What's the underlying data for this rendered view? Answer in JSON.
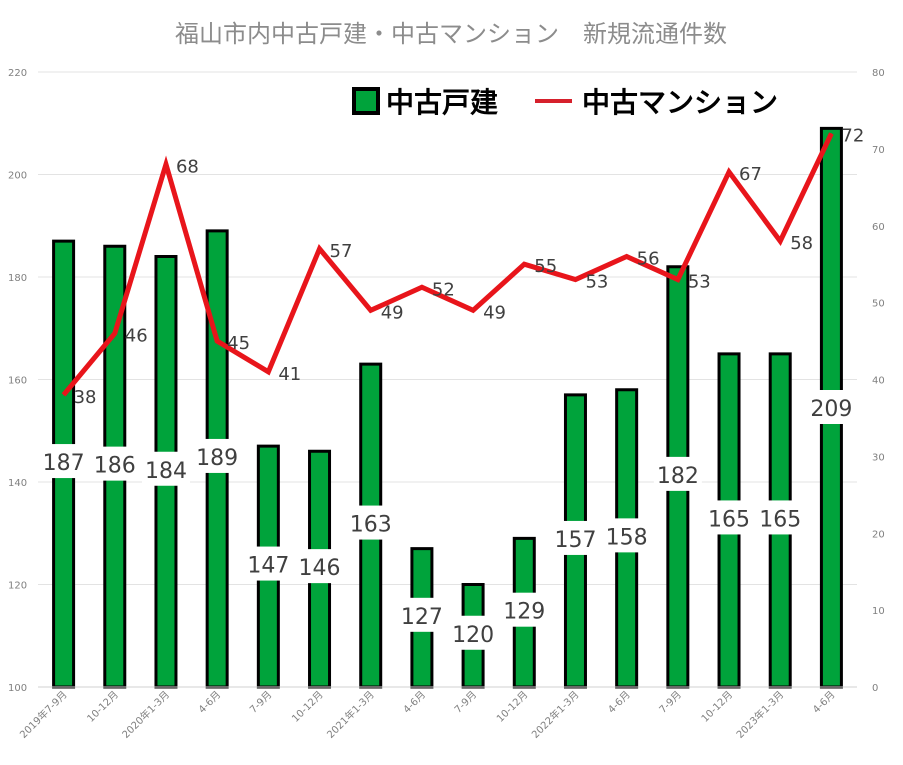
{
  "chart_data": {
    "type": "bar",
    "title": "福山市内中古戸建・中古マンション　新規流通件数",
    "categories": [
      "2019年7-9月",
      "10-12月",
      "2020年1-3月",
      "4-6月",
      "7-9月",
      "10-12月",
      "2021年1-3月",
      "4-6月",
      "7-9月",
      "10-12月",
      "2022年1-3月",
      "4-6月",
      "7-9月",
      "10-12月",
      "2023年1-3月",
      "4-6月"
    ],
    "series": [
      {
        "name": "中古戸建",
        "type": "bar",
        "axis": "left",
        "color": "#00a33b",
        "values": [
          187,
          186,
          184,
          189,
          147,
          146,
          163,
          127,
          120,
          129,
          157,
          158,
          182,
          165,
          165,
          209
        ]
      },
      {
        "name": "中古マンション",
        "type": "line",
        "axis": "right",
        "color": "#e8151b",
        "values": [
          38,
          46,
          68,
          45,
          41,
          57,
          49,
          52,
          49,
          55,
          53,
          56,
          53,
          67,
          58,
          72
        ]
      }
    ],
    "ylim": [
      100,
      220
    ],
    "y_ticks": [
      "100",
      "120",
      "140",
      "160",
      "180",
      "200",
      "220"
    ],
    "y2lim": [
      0,
      80
    ],
    "y2_ticks": [
      "0",
      "10",
      "20",
      "30",
      "40",
      "50",
      "60",
      "70",
      "80"
    ],
    "grid": true,
    "legend_position": "top-right"
  }
}
